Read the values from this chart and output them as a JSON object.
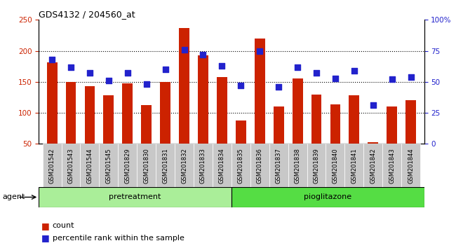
{
  "title": "GDS4132 / 204560_at",
  "samples": [
    "GSM201542",
    "GSM201543",
    "GSM201544",
    "GSM201545",
    "GSM201829",
    "GSM201830",
    "GSM201831",
    "GSM201832",
    "GSM201833",
    "GSM201834",
    "GSM201835",
    "GSM201836",
    "GSM201837",
    "GSM201838",
    "GSM201839",
    "GSM201840",
    "GSM201841",
    "GSM201842",
    "GSM201843",
    "GSM201844"
  ],
  "counts": [
    182,
    150,
    143,
    128,
    147,
    113,
    150,
    237,
    193,
    158,
    88,
    220,
    110,
    155,
    130,
    114,
    128,
    53,
    110,
    120
  ],
  "percentiles": [
    68,
    62,
    57,
    51,
    57,
    48,
    60,
    76,
    72,
    63,
    47,
    75,
    46,
    62,
    57,
    53,
    59,
    31,
    52,
    54
  ],
  "pretreatment_count": 10,
  "ylim_left": [
    50,
    250
  ],
  "ylim_right": [
    0,
    100
  ],
  "yticks_left": [
    50,
    100,
    150,
    200,
    250
  ],
  "yticks_right": [
    0,
    25,
    50,
    75,
    100
  ],
  "bar_color": "#cc2200",
  "dot_color": "#2222cc",
  "pretreatment_color": "#aaee99",
  "pioglitazone_color": "#55dd44",
  "agent_label": "agent",
  "pretreatment_label": "pretreatment",
  "pioglitazone_label": "pioglitazone",
  "legend_count": "count",
  "legend_percentile": "percentile rank within the sample",
  "bg_color": "#c8c8c8",
  "bar_width": 0.55,
  "dot_size": 40
}
